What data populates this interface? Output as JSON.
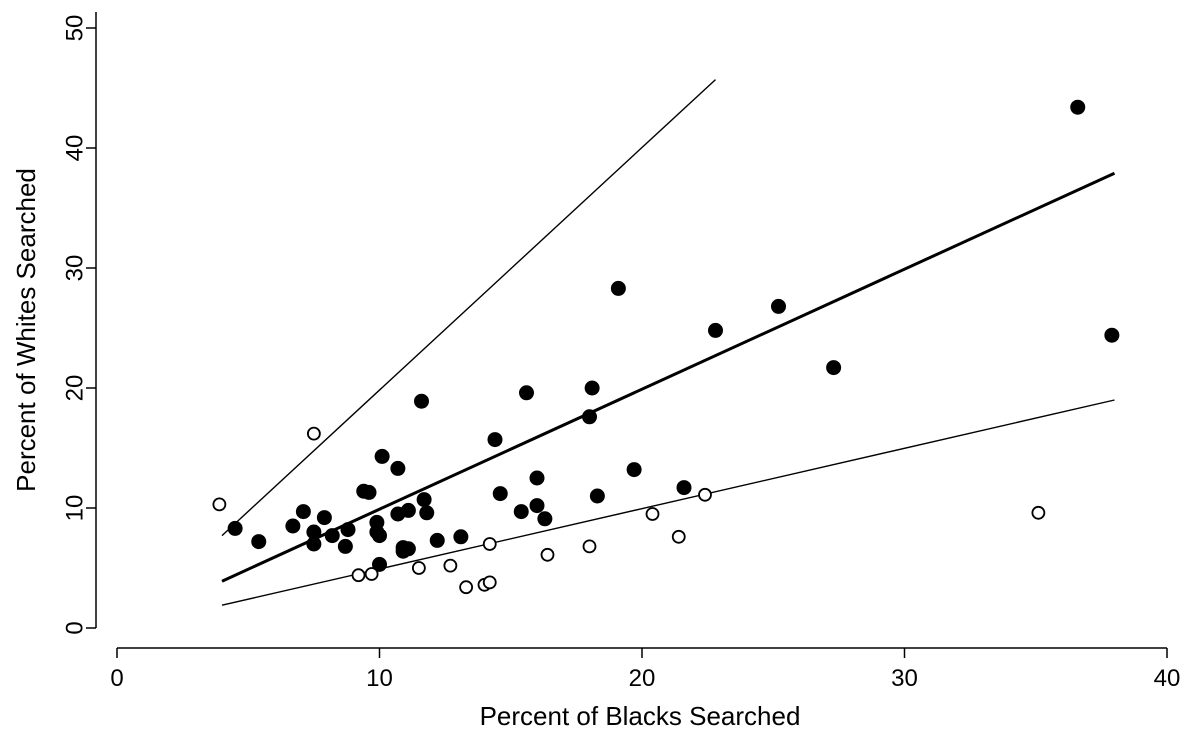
{
  "chart_data": {
    "type": "scatter",
    "xlabel": "Percent of Blacks Searched",
    "ylabel": "Percent of Whites Searched",
    "xlim": [
      0,
      40
    ],
    "ylim": [
      0,
      50
    ],
    "xticks": [
      "0",
      "10",
      "20",
      "30",
      "40"
    ],
    "yticks": [
      "0",
      "10",
      "20",
      "30",
      "40",
      "50"
    ],
    "grid": false,
    "legend": "none",
    "series": [
      {
        "marker": "filled-circle",
        "color": "#000000",
        "points": [
          [
            4.5,
            8.3
          ],
          [
            5.4,
            7.2
          ],
          [
            6.7,
            8.5
          ],
          [
            7.1,
            9.7
          ],
          [
            7.5,
            8.0
          ],
          [
            7.5,
            7.0
          ],
          [
            7.9,
            9.2
          ],
          [
            8.2,
            7.7
          ],
          [
            8.7,
            6.8
          ],
          [
            8.8,
            8.2
          ],
          [
            9.4,
            11.4
          ],
          [
            9.6,
            11.3
          ],
          [
            9.9,
            8.8
          ],
          [
            9.9,
            8.0
          ],
          [
            10.0,
            7.7
          ],
          [
            10.0,
            5.3
          ],
          [
            10.1,
            14.3
          ],
          [
            10.7,
            13.3
          ],
          [
            10.7,
            9.5
          ],
          [
            10.9,
            6.7
          ],
          [
            10.9,
            6.4
          ],
          [
            11.1,
            9.8
          ],
          [
            11.1,
            6.6
          ],
          [
            11.6,
            18.9
          ],
          [
            11.7,
            10.7
          ],
          [
            11.8,
            9.6
          ],
          [
            12.2,
            7.3
          ],
          [
            13.1,
            7.6
          ],
          [
            14.4,
            15.7
          ],
          [
            14.6,
            11.2
          ],
          [
            15.4,
            9.7
          ],
          [
            15.6,
            19.6
          ],
          [
            16.0,
            12.5
          ],
          [
            16.0,
            10.2
          ],
          [
            16.3,
            9.1
          ],
          [
            18.0,
            17.6
          ],
          [
            18.1,
            20.0
          ],
          [
            18.3,
            11.0
          ],
          [
            19.1,
            28.3
          ],
          [
            19.7,
            13.2
          ],
          [
            21.6,
            11.7
          ],
          [
            22.8,
            24.8
          ],
          [
            25.2,
            26.8
          ],
          [
            27.3,
            21.7
          ],
          [
            36.6,
            43.4
          ],
          [
            37.9,
            24.4
          ]
        ]
      },
      {
        "marker": "hollow-circle",
        "color": "#000000",
        "points": [
          [
            3.9,
            10.3
          ],
          [
            7.5,
            16.2
          ],
          [
            9.2,
            4.4
          ],
          [
            9.7,
            4.5
          ],
          [
            11.5,
            5.0
          ],
          [
            12.7,
            5.2
          ],
          [
            13.3,
            3.4
          ],
          [
            14.0,
            3.6
          ],
          [
            14.2,
            3.8
          ],
          [
            14.2,
            7.0
          ],
          [
            16.4,
            6.1
          ],
          [
            18.0,
            6.8
          ],
          [
            20.4,
            9.5
          ],
          [
            21.4,
            7.6
          ],
          [
            22.4,
            11.1
          ],
          [
            35.1,
            9.6
          ]
        ]
      }
    ],
    "lines": [
      {
        "style": "thin",
        "x": [
          4,
          22.8
        ],
        "y": [
          7.7,
          45.7
        ]
      },
      {
        "style": "thick",
        "x": [
          4,
          38
        ],
        "y": [
          3.9,
          37.9
        ]
      },
      {
        "style": "thin",
        "x": [
          4,
          38
        ],
        "y": [
          1.9,
          19.0
        ]
      }
    ]
  }
}
